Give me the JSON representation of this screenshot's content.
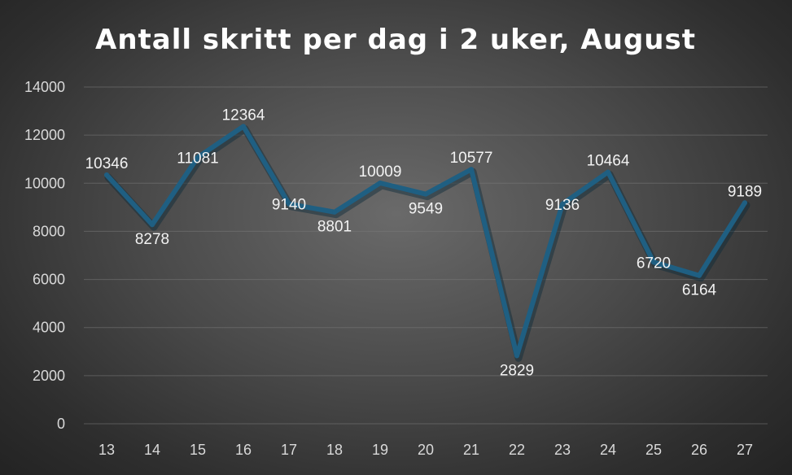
{
  "chart_data": {
    "type": "line",
    "title": "Antall skritt per dag i 2 uker, August",
    "xlabel": "",
    "ylabel": "",
    "categories": [
      "13",
      "14",
      "15",
      "16",
      "17",
      "18",
      "19",
      "20",
      "21",
      "22",
      "23",
      "24",
      "25",
      "26",
      "27"
    ],
    "series": [
      {
        "values": [
          10346,
          8278,
          11081,
          12364,
          9140,
          8801,
          10009,
          9549,
          10577,
          2829,
          9136,
          10464,
          6720,
          6164,
          9189
        ]
      }
    ],
    "ylim": [
      0,
      14000
    ],
    "yticks": [
      0,
      2000,
      4000,
      6000,
      8000,
      10000,
      12000,
      14000
    ],
    "grid": true,
    "legend": "none",
    "line_color": "#1f5f82",
    "data_labels": true
  }
}
